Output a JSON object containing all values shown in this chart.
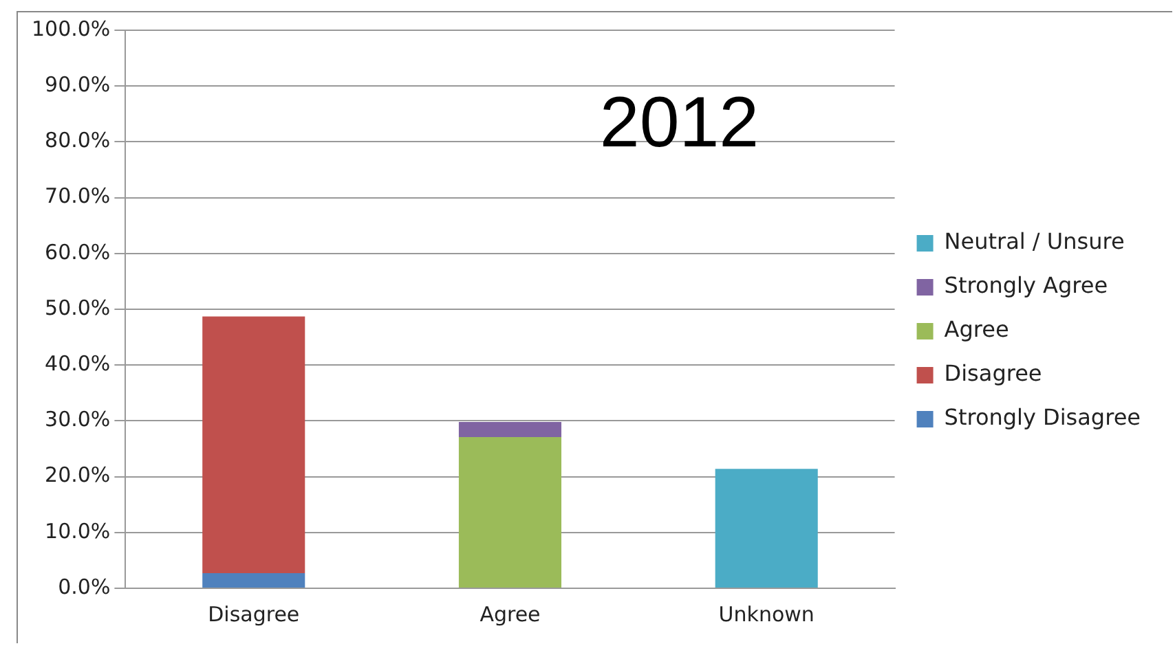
{
  "chart_data": {
    "type": "bar",
    "title": "2012",
    "categories": [
      "Disagree",
      "Agree",
      "Unknown"
    ],
    "stacked": true,
    "series": [
      {
        "name": "Strongly Disagree",
        "color": "#4f81bd",
        "values": [
          2.7,
          null,
          null
        ]
      },
      {
        "name": "Disagree",
        "color": "#c0504d",
        "values": [
          46.0,
          null,
          null
        ]
      },
      {
        "name": "Agree",
        "color": "#9bbb59",
        "values": [
          null,
          27.1,
          null
        ]
      },
      {
        "name": "Strongly Agree",
        "color": "#8064a2",
        "values": [
          null,
          2.7,
          null
        ]
      },
      {
        "name": "Neutral / Unsure",
        "color": "#4bacc6",
        "values": [
          null,
          null,
          21.4
        ]
      }
    ],
    "ylim": [
      0,
      100
    ],
    "yticks": [
      {
        "value": 0,
        "label": "0.0%"
      },
      {
        "value": 10,
        "label": "10.0%"
      },
      {
        "value": 20,
        "label": "20.0%"
      },
      {
        "value": 30,
        "label": "30.0%"
      },
      {
        "value": 40,
        "label": "40.0%"
      },
      {
        "value": 50,
        "label": "50.0%"
      },
      {
        "value": 60,
        "label": "60.0%"
      },
      {
        "value": 70,
        "label": "70.0%"
      },
      {
        "value": 80,
        "label": "80.0%"
      },
      {
        "value": 90,
        "label": "90.0%"
      },
      {
        "value": 100,
        "label": "100.0%"
      }
    ],
    "grid": "y",
    "legend": "right"
  }
}
